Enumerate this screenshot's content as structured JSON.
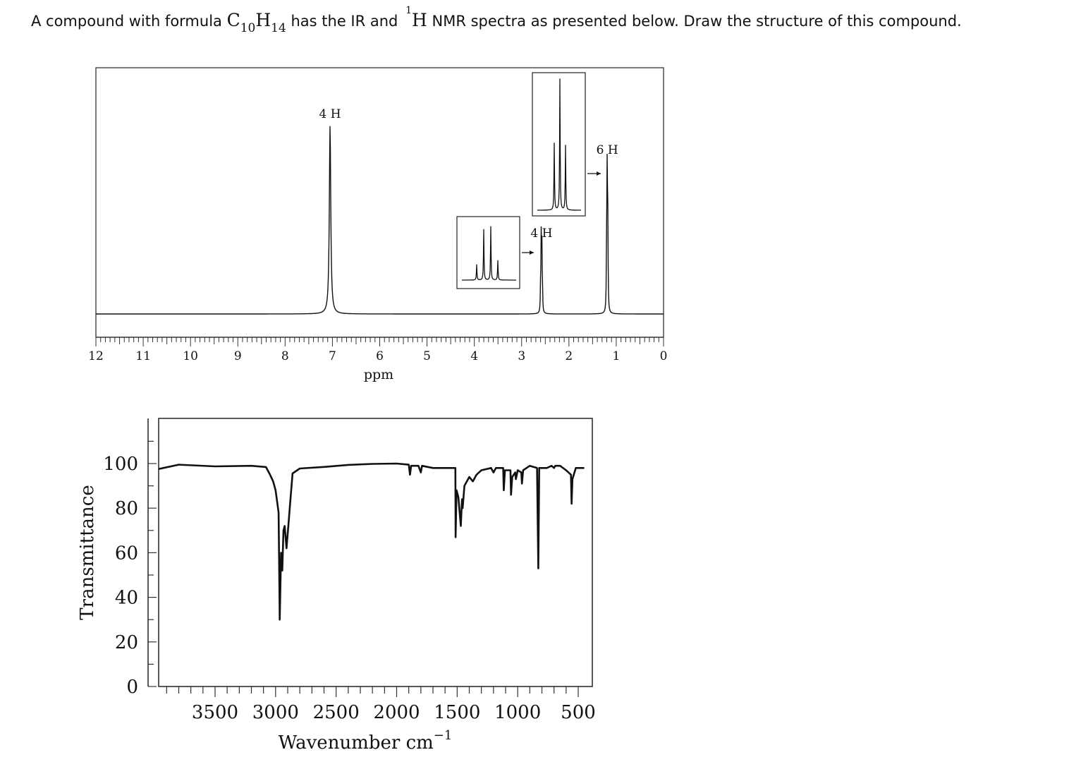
{
  "question": {
    "p1": "A compound with formula ",
    "c": "C",
    "c_sub": "10",
    "h": "H",
    "h_sub": "14",
    "p2": " has the IR and ",
    "sup": "1",
    "h2": "H",
    "p3": " NMR spectra as presented below. Draw the structure of this compound."
  },
  "chart_data": [
    {
      "type": "line",
      "title": "",
      "xlabel": "ppm",
      "ylabel": "",
      "xlim": [
        12,
        0
      ],
      "x_ticks": [
        "12",
        "11",
        "10",
        "9",
        "8",
        "7",
        "6",
        "5",
        "4",
        "3",
        "2",
        "1",
        "0"
      ],
      "grid": false,
      "peaks": [
        {
          "shift": 7.05,
          "integration": "4 H",
          "multiplicity": "singlet"
        },
        {
          "shift": 2.58,
          "integration": "4 H",
          "multiplicity": "quartet"
        },
        {
          "shift": 1.19,
          "integration": "6 H",
          "multiplicity": "triplet"
        }
      ]
    },
    {
      "type": "line",
      "title": "",
      "xlabel": "Wavenumber cm",
      "xlabel_sup": "−1",
      "ylabel": "Transmittance",
      "xlim": [
        4000,
        450
      ],
      "ylim": [
        0,
        100
      ],
      "x_ticks": [
        "3500",
        "3000",
        "2500",
        "2000",
        "1500",
        "1000",
        "500"
      ],
      "y_ticks": [
        "0",
        "20",
        "40",
        "60",
        "80",
        "100"
      ],
      "grid": false,
      "points": [
        [
          4000,
          98
        ],
        [
          3800,
          99
        ],
        [
          3500,
          99
        ],
        [
          3200,
          99
        ],
        [
          3080,
          98
        ],
        [
          3050,
          96
        ],
        [
          3020,
          92
        ],
        [
          3000,
          88
        ],
        [
          2985,
          82
        ],
        [
          2975,
          78
        ],
        [
          2966,
          30
        ],
        [
          2955,
          60
        ],
        [
          2945,
          52
        ],
        [
          2935,
          70
        ],
        [
          2925,
          72
        ],
        [
          2910,
          62
        ],
        [
          2895,
          72
        ],
        [
          2880,
          82
        ],
        [
          2860,
          96
        ],
        [
          2800,
          98
        ],
        [
          2600,
          99
        ],
        [
          2400,
          99
        ],
        [
          2200,
          99.5
        ],
        [
          2000,
          100
        ],
        [
          1900,
          99.5
        ],
        [
          1890,
          95
        ],
        [
          1880,
          99
        ],
        [
          1820,
          99
        ],
        [
          1800,
          96
        ],
        [
          1790,
          99
        ],
        [
          1700,
          98
        ],
        [
          1515,
          98
        ],
        [
          1513,
          67
        ],
        [
          1505,
          88
        ],
        [
          1490,
          85
        ],
        [
          1470,
          72
        ],
        [
          1460,
          84
        ],
        [
          1455,
          80
        ],
        [
          1440,
          90
        ],
        [
          1400,
          94
        ],
        [
          1370,
          92
        ],
        [
          1340,
          95
        ],
        [
          1300,
          97
        ],
        [
          1220,
          98
        ],
        [
          1200,
          96
        ],
        [
          1180,
          98
        ],
        [
          1120,
          98
        ],
        [
          1115,
          88
        ],
        [
          1105,
          97
        ],
        [
          1060,
          97
        ],
        [
          1055,
          86
        ],
        [
          1045,
          94
        ],
        [
          1020,
          96
        ],
        [
          1015,
          93
        ],
        [
          1000,
          97
        ],
        [
          970,
          96
        ],
        [
          965,
          91
        ],
        [
          955,
          97
        ],
        [
          900,
          99
        ],
        [
          840,
          98
        ],
        [
          830,
          53
        ],
        [
          822,
          98
        ],
        [
          760,
          98
        ],
        [
          720,
          99
        ],
        [
          700,
          98
        ],
        [
          690,
          99
        ],
        [
          650,
          99
        ],
        [
          600,
          97
        ],
        [
          560,
          95
        ],
        [
          555,
          82
        ],
        [
          548,
          93
        ],
        [
          520,
          98
        ],
        [
          450,
          98
        ]
      ]
    }
  ]
}
